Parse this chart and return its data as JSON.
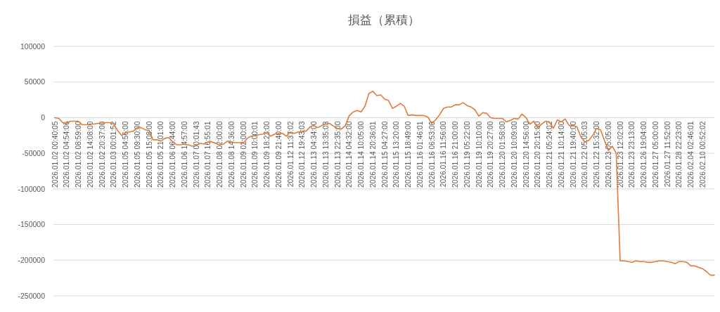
{
  "chart_data": {
    "type": "line",
    "title": "損益（累積）",
    "categories": [
      "2026.01.02 00:40:05",
      null,
      null,
      "2026.01.02 04:54:06",
      null,
      null,
      "2026.01.02 08:59:00",
      null,
      null,
      "2026.01.02 14:08:00",
      null,
      null,
      "2026.01.02 20:37:00",
      null,
      null,
      "2026.01.03 00:01:52",
      null,
      null,
      "2026.01.05 04:56:00",
      null,
      null,
      "2026.01.05 09:30:00",
      null,
      null,
      "2026.01.05 15:08:00",
      null,
      null,
      "2026.01.05 21:01:00",
      null,
      null,
      "2026.01.06 06:44:00",
      null,
      null,
      "2026.01.06 14:57:00",
      null,
      null,
      "2026.01.07 00:01:43",
      null,
      null,
      "2026.01.07 16:55:01",
      null,
      null,
      "2026.01.08 02:00:00",
      null,
      null,
      "2026.01.08 14:36:00",
      null,
      null,
      "2026.01.09 02:00:00",
      null,
      null,
      "2026.01.09 10:00:01",
      null,
      null,
      "2026.01.09 18:23:00",
      null,
      null,
      "2026.01.09 21:40:00",
      null,
      null,
      "2026.01.12 11:37:02",
      null,
      null,
      "2026.01.12 19:43:03",
      null,
      null,
      "2026.01.13 04:34:00",
      null,
      null,
      "2026.01.13 13:35:03",
      null,
      null,
      "2026.01.13 22:35:00",
      null,
      null,
      "2026.01.14 04:32:00",
      null,
      null,
      "2026.01.14 10:05:00",
      null,
      null,
      "2026.01.14 20:36:01",
      null,
      null,
      "2026.01.15 04:27:00",
      null,
      null,
      "2026.01.15 13:20:00",
      null,
      null,
      "2026.01.15 18:49:00",
      null,
      null,
      "2026.01.16 01:46:01",
      null,
      null,
      "2026.01.16 06:53:00",
      null,
      null,
      "2026.01.16 11:56:00",
      null,
      null,
      "2026.01.16 21:00:00",
      null,
      null,
      "2026.01.19 05:22:00",
      null,
      null,
      "2026.01.19 10:10:00",
      null,
      null,
      "2026.01.19 20:27:00",
      null,
      null,
      "2026.01.20 01:58:00",
      null,
      null,
      "2026.01.20 10:09:00",
      null,
      null,
      "2026.01.20 14:56:00",
      null,
      null,
      "2026.01.20 20:15:00",
      null,
      null,
      "2026.01.21 05:24:02",
      null,
      null,
      "2026.01.21 10:14:00",
      null,
      null,
      "2026.01.21 19:40:00",
      null,
      null,
      "2026.01.22 05:05:03",
      null,
      null,
      "2026.01.22 15:32:00",
      null,
      null,
      "2026.01.23 05:05:00",
      null,
      null,
      "2026.01.23 12:02:00",
      null,
      null,
      "2026.01.23 23:13:00",
      null,
      null,
      "2026.01.26 19:04:00",
      null,
      null,
      "2026.01.27 05:00:00",
      null,
      null,
      "2026.01.27 11:52:00",
      null,
      null,
      "2026.01.28 22:23:00",
      null,
      null,
      "2026.02.04 02:46:01",
      null,
      null,
      "2026.02.10 00:52:02",
      null,
      null,
      null
    ],
    "series": [
      {
        "color": "#e07b39",
        "values": [
          0,
          -1000,
          -7000,
          -8000,
          -5000,
          -5000,
          -5000,
          -10000,
          -10000,
          -9000,
          -9000,
          -8000,
          -8000,
          -7000,
          -7000,
          -9000,
          -18000,
          -25000,
          -21000,
          -20000,
          -19000,
          -14000,
          -14000,
          -17000,
          -18000,
          -31000,
          -31000,
          -33000,
          -29000,
          -28000,
          -34000,
          -38000,
          -38000,
          -37000,
          -38000,
          -40000,
          -39000,
          -36000,
          -37000,
          -34000,
          -34000,
          -36000,
          -38000,
          -37000,
          -33000,
          -34000,
          -35000,
          -35000,
          -36000,
          -29000,
          -26000,
          -25000,
          -24000,
          -23000,
          -21000,
          -26000,
          -23000,
          -22000,
          -22000,
          -26000,
          -20000,
          -22000,
          -20000,
          -19000,
          -19000,
          -13000,
          -11000,
          -14000,
          -11000,
          -9000,
          -8000,
          -12000,
          -15000,
          -16000,
          -11000,
          3000,
          8000,
          10000,
          8000,
          16000,
          34000,
          37000,
          31000,
          32000,
          26000,
          24000,
          13000,
          16000,
          20000,
          16000,
          3000,
          4000,
          3000,
          3000,
          3000,
          1000,
          -8000,
          -3000,
          4000,
          13000,
          15000,
          15000,
          18000,
          18000,
          21000,
          17000,
          15000,
          11000,
          2000,
          7000,
          6000,
          0,
          -1000,
          -1000,
          -1000,
          -6000,
          -4000,
          -1000,
          -2000,
          5000,
          0,
          -9000,
          -5000,
          -14000,
          -9000,
          -5000,
          -6000,
          -15000,
          -3000,
          -6000,
          -2000,
          -11000,
          -11000,
          -13000,
          -27000,
          -34000,
          -32000,
          -25000,
          -15000,
          -17000,
          -32000,
          -46000,
          -40000,
          -50000,
          -201000,
          -201000,
          -202000,
          -203000,
          -201000,
          -202000,
          -202000,
          -203000,
          -203000,
          -202000,
          -201000,
          -201000,
          -202000,
          -203000,
          -205000,
          -202000,
          -202000,
          -203000,
          -208000,
          -208000,
          -210000,
          -212000,
          -216000,
          -221000,
          -221000
        ]
      }
    ],
    "ylim": [
      -250000,
      100000
    ],
    "yticks": [
      -250000,
      -200000,
      -150000,
      -100000,
      -50000,
      0,
      50000,
      100000
    ],
    "grid": "y"
  }
}
